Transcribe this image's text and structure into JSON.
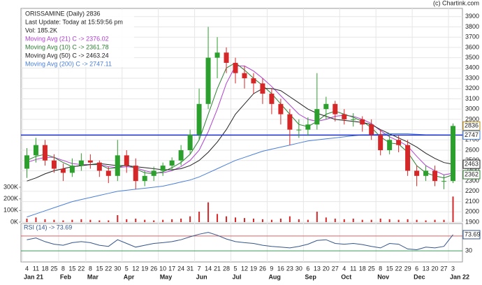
{
  "chart_data": {
    "type": "candlestick",
    "title": "ORISSAMINE (Daily) 2836",
    "info": [
      "Last Update: Today at 15:59:56 pm",
      "Vol: 185.2K"
    ],
    "credit": "(c) Chartink.com",
    "categories": [
      "4",
      "11",
      "18",
      "25",
      "8",
      "15",
      "22",
      "8",
      "15",
      "22",
      "30",
      "5",
      "12",
      "19",
      "26",
      "10",
      "17",
      "24",
      "31",
      "7",
      "14",
      "21",
      "28",
      "5",
      "12",
      "19",
      "26",
      "9",
      "16",
      "23",
      "30",
      "6",
      "13",
      "20",
      "27",
      "4",
      "11",
      "18",
      "25",
      "8",
      "15",
      "22",
      "29",
      "6",
      "13",
      "20",
      "27",
      "3"
    ],
    "months": [
      "Jan 21",
      null,
      null,
      null,
      "Feb",
      null,
      null,
      "Mar",
      null,
      null,
      null,
      "Apr",
      null,
      null,
      null,
      "May",
      null,
      null,
      null,
      "Jun",
      null,
      null,
      null,
      "Jul",
      null,
      null,
      null,
      "Aug",
      null,
      null,
      null,
      "Sep",
      null,
      null,
      null,
      "Oct",
      null,
      null,
      null,
      "Nov",
      null,
      null,
      null,
      "Dec",
      null,
      null,
      null,
      "Jan 22"
    ],
    "open": [
      2420,
      2550,
      2650,
      2500,
      2420,
      2380,
      2450,
      2500,
      2480,
      2400,
      2350,
      2550,
      2450,
      2300,
      2350,
      2400,
      2450,
      2500,
      2600,
      2750,
      3050,
      3500,
      3550,
      3450,
      3350,
      3300,
      3250,
      3150,
      3050,
      2950,
      2800,
      2800,
      2850,
      3000,
      3050,
      2950,
      2900,
      2900,
      2850,
      2750,
      2600,
      2700,
      2650,
      2400,
      2350,
      2400,
      2300,
      2300
    ],
    "high": [
      2620,
      2720,
      2700,
      2560,
      2470,
      2520,
      2570,
      2560,
      2500,
      2440,
      2700,
      2600,
      2520,
      2400,
      2440,
      2480,
      2530,
      2650,
      2800,
      3200,
      3800,
      3700,
      3600,
      3500,
      3420,
      3350,
      3300,
      3200,
      3100,
      3000,
      2900,
      2920,
      3350,
      3120,
      3080,
      3000,
      2960,
      2930,
      2900,
      2800,
      2760,
      2740,
      2700,
      2450,
      2450,
      2450,
      2360,
      2860
    ],
    "low": [
      2330,
      2480,
      2450,
      2380,
      2300,
      2340,
      2400,
      2420,
      2340,
      2280,
      2300,
      2380,
      2220,
      2250,
      2300,
      2350,
      2400,
      2450,
      2560,
      2700,
      3000,
      3300,
      3350,
      3250,
      3200,
      3150,
      3050,
      2950,
      2850,
      2650,
      2720,
      2740,
      2800,
      2900,
      2880,
      2850,
      2830,
      2780,
      2700,
      2550,
      2560,
      2580,
      2350,
      2250,
      2300,
      2250,
      2220,
      2280
    ],
    "close": [
      2550,
      2650,
      2500,
      2420,
      2380,
      2450,
      2500,
      2480,
      2400,
      2350,
      2550,
      2450,
      2300,
      2350,
      2400,
      2450,
      2500,
      2600,
      2750,
      3050,
      3500,
      3550,
      3450,
      3350,
      3300,
      3250,
      3150,
      3050,
      2950,
      2800,
      2800,
      2850,
      3000,
      3050,
      2950,
      2900,
      2900,
      2850,
      2750,
      2600,
      2700,
      2650,
      2400,
      2350,
      2400,
      2300,
      2300,
      2836
    ],
    "up_color": "#2ca02c",
    "down_color": "#d62728",
    "ylim": [
      1900,
      3980
    ],
    "yticks": [
      1900,
      2000,
      2100,
      2200,
      2300,
      2400,
      2500,
      2600,
      2700,
      2800,
      2900,
      3000,
      3100,
      3200,
      3300,
      3400,
      3500,
      3600,
      3700,
      3800,
      3900
    ],
    "grid": true,
    "volume": {
      "color": "#d62728",
      "values": [
        30000,
        40000,
        25000,
        20000,
        15000,
        20000,
        25000,
        20000,
        15000,
        15000,
        60000,
        25000,
        30000,
        20000,
        15000,
        20000,
        25000,
        30000,
        50000,
        90000,
        170000,
        70000,
        50000,
        40000,
        35000,
        30000,
        25000,
        20000,
        30000,
        50000,
        25000,
        20000,
        90000,
        40000,
        30000,
        25000,
        30000,
        20000,
        20000,
        30000,
        25000,
        20000,
        25000,
        20000,
        15000,
        20000,
        20000,
        220000
      ],
      "ylim": [
        0,
        300000
      ],
      "yticks": [
        {
          "value": 0,
          "label": "0K"
        },
        {
          "value": 100000,
          "label": "100K"
        },
        {
          "value": 200000,
          "label": "200K"
        },
        {
          "value": 300000,
          "label": "300K"
        }
      ]
    },
    "series": [
      {
        "name": "Moving Avg (21) C -> 2376.02",
        "color": "#b040d0",
        "values": [
          2480,
          2510,
          2530,
          2530,
          2500,
          2470,
          2460,
          2460,
          2460,
          2440,
          2430,
          2440,
          2430,
          2400,
          2380,
          2380,
          2400,
          2440,
          2500,
          2600,
          2780,
          3000,
          3250,
          3420,
          3420,
          3370,
          3300,
          3220,
          3130,
          3040,
          2950,
          2900,
          2880,
          2900,
          2930,
          2940,
          2930,
          2900,
          2860,
          2790,
          2730,
          2690,
          2640,
          2540,
          2450,
          2400,
          2360,
          2376.02
        ]
      },
      {
        "name": "Moving Avg (10) C -> 2361.78",
        "color": "#2e7d32",
        "end_label": "2362",
        "values": [
          2500,
          2540,
          2560,
          2530,
          2480,
          2440,
          2450,
          2460,
          2460,
          2420,
          2430,
          2460,
          2420,
          2380,
          2370,
          2390,
          2430,
          2480,
          2560,
          2700,
          2950,
          3200,
          3400,
          3450,
          3380,
          3300,
          3230,
          3150,
          3050,
          2950,
          2850,
          2830,
          2880,
          2950,
          2980,
          2950,
          2920,
          2880,
          2820,
          2730,
          2670,
          2660,
          2580,
          2450,
          2380,
          2350,
          2330,
          2361.78
        ]
      },
      {
        "name": "Moving Avg (50) C -> 2463.24",
        "color": "#222222",
        "end_label": "2463",
        "values": [
          2300,
          2330,
          2370,
          2400,
          2420,
          2440,
          2450,
          2460,
          2470,
          2460,
          2450,
          2450,
          2440,
          2430,
          2420,
          2410,
          2410,
          2420,
          2450,
          2500,
          2580,
          2680,
          2800,
          2950,
          3050,
          3150,
          3200,
          3200,
          3180,
          3120,
          3060,
          3000,
          2960,
          2930,
          2900,
          2890,
          2880,
          2870,
          2850,
          2800,
          2760,
          2720,
          2680,
          2630,
          2570,
          2520,
          2480,
          2463.24
        ]
      },
      {
        "name": "Moving Avg (200) C -> 2747.11",
        "color": "#4a7fd8",
        "end_label": "2747",
        "values": [
          1950,
          1980,
          2010,
          2040,
          2070,
          2100,
          2120,
          2140,
          2160,
          2180,
          2200,
          2210,
          2220,
          2230,
          2240,
          2250,
          2270,
          2290,
          2310,
          2340,
          2380,
          2420,
          2460,
          2500,
          2530,
          2560,
          2590,
          2610,
          2630,
          2650,
          2670,
          2690,
          2700,
          2710,
          2720,
          2730,
          2740,
          2750,
          2750,
          2755,
          2760,
          2760,
          2760,
          2755,
          2750,
          2750,
          2748,
          2747.11
        ]
      }
    ],
    "rsi": {
      "name": "RSI (14) -> 73.69",
      "color": "#34558b",
      "end_label": "73.69",
      "values": [
        60,
        65,
        55,
        48,
        45,
        52,
        55,
        52,
        45,
        42,
        60,
        50,
        40,
        45,
        50,
        52,
        55,
        60,
        68,
        75,
        80,
        72,
        62,
        55,
        52,
        50,
        45,
        42,
        40,
        38,
        42,
        48,
        58,
        60,
        50,
        48,
        50,
        47,
        42,
        38,
        50,
        48,
        35,
        33,
        40,
        38,
        42,
        73.69
      ],
      "ylim": [
        0,
        100
      ],
      "yticks": [
        30
      ],
      "overbought": 70,
      "overbought_color": "#e06060",
      "oversold_color": "#3a9a5a"
    }
  }
}
